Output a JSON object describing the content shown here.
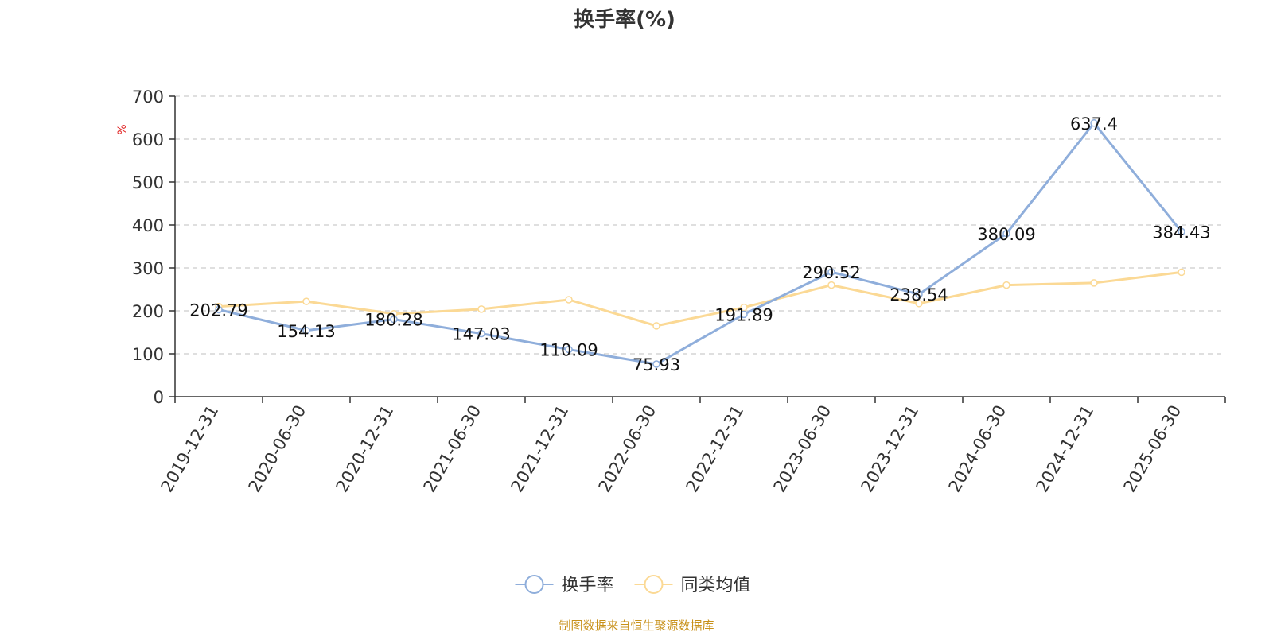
{
  "colors": {
    "series1": "#8faedb",
    "series2": "#fbd995",
    "source": "#c8911a",
    "unit": "#e02020"
  },
  "footer": {
    "source": "制图数据来自恒生聚源数据库"
  },
  "chart_data": {
    "type": "line",
    "title": "换手率(%)",
    "unit_label": "%",
    "categories": [
      "2019-12-31",
      "2020-06-30",
      "2020-12-31",
      "2021-06-30",
      "2021-12-31",
      "2022-06-30",
      "2022-12-31",
      "2023-06-30",
      "2023-12-31",
      "2024-06-30",
      "2024-12-31",
      "2025-06-30"
    ],
    "ylim": [
      0,
      700
    ],
    "yticks": [
      0,
      100,
      200,
      300,
      400,
      500,
      600,
      700
    ],
    "grid": true,
    "legend_position": "bottom-center",
    "series": [
      {
        "name": "换手率",
        "color": "#8faedb",
        "show_labels": true,
        "values": [
          202.79,
          154.13,
          180.28,
          147.03,
          110.09,
          75.93,
          191.89,
          290.52,
          238.54,
          380.09,
          637.4,
          384.43
        ]
      },
      {
        "name": "同类均值",
        "color": "#fbd995",
        "show_labels": false,
        "values": [
          210,
          222,
          193,
          204,
          226,
          165,
          208,
          260,
          217,
          260,
          265,
          290
        ]
      }
    ]
  }
}
